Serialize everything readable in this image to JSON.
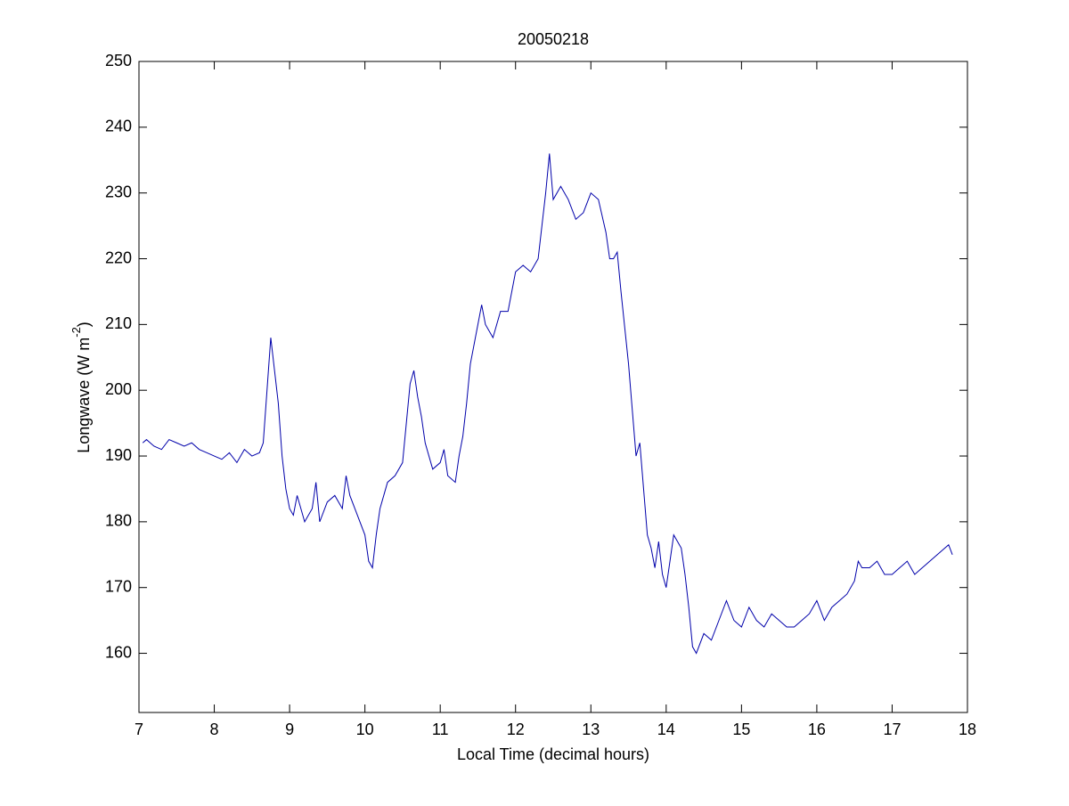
{
  "chart_data": {
    "type": "line",
    "title": "20050218",
    "xlabel": "Local Time (decimal hours)",
    "ylabel": [
      "Longwave (W m",
      "-2",
      ")"
    ],
    "xlim": [
      7,
      18
    ],
    "xticks": [
      7,
      8,
      9,
      10,
      11,
      12,
      13,
      14,
      15,
      16,
      17,
      18
    ],
    "ylim": [
      151,
      250
    ],
    "yticks": [
      160,
      170,
      180,
      190,
      200,
      210,
      220,
      230,
      240,
      250
    ],
    "grid": false,
    "series": [
      {
        "color": "#0000aa",
        "x": [
          7.05,
          7.1,
          7.2,
          7.3,
          7.4,
          7.5,
          7.6,
          7.7,
          7.8,
          7.9,
          8.0,
          8.1,
          8.2,
          8.3,
          8.4,
          8.5,
          8.6,
          8.65,
          8.7,
          8.75,
          8.8,
          8.85,
          8.9,
          8.95,
          9.0,
          9.05,
          9.1,
          9.2,
          9.3,
          9.35,
          9.4,
          9.5,
          9.6,
          9.7,
          9.75,
          9.8,
          9.9,
          10.0,
          10.05,
          10.1,
          10.15,
          10.2,
          10.3,
          10.4,
          10.5,
          10.55,
          10.6,
          10.65,
          10.7,
          10.75,
          10.8,
          10.9,
          11.0,
          11.05,
          11.1,
          11.2,
          11.25,
          11.3,
          11.35,
          11.4,
          11.5,
          11.55,
          11.6,
          11.7,
          11.8,
          11.9,
          12.0,
          12.1,
          12.2,
          12.3,
          12.35,
          12.4,
          12.45,
          12.5,
          12.6,
          12.7,
          12.8,
          12.9,
          13.0,
          13.1,
          13.2,
          13.25,
          13.3,
          13.35,
          13.4,
          13.5,
          13.55,
          13.6,
          13.65,
          13.7,
          13.75,
          13.8,
          13.85,
          13.9,
          13.95,
          14.0,
          14.05,
          14.1,
          14.15,
          14.2,
          14.25,
          14.3,
          14.35,
          14.4,
          14.5,
          14.6,
          14.7,
          14.8,
          14.9,
          15.0,
          15.1,
          15.2,
          15.3,
          15.4,
          15.5,
          15.6,
          15.7,
          15.8,
          15.9,
          16.0,
          16.1,
          16.2,
          16.3,
          16.4,
          16.5,
          16.55,
          16.6,
          16.7,
          16.8,
          16.9,
          17.0,
          17.1,
          17.2,
          17.3,
          17.4,
          17.5,
          17.6,
          17.7,
          17.75,
          17.8
        ],
        "values": [
          192,
          192.5,
          191.5,
          191,
          192.5,
          192,
          191.5,
          192,
          191,
          190.5,
          190,
          189.5,
          190.5,
          189,
          191,
          190,
          190.5,
          192,
          200,
          208,
          203,
          198,
          190,
          185,
          182,
          181,
          184,
          180,
          182,
          186,
          180,
          183,
          184,
          182,
          187,
          184,
          181,
          178,
          174,
          173,
          178,
          182,
          186,
          187,
          189,
          195,
          201,
          203,
          199,
          196,
          192,
          188,
          189,
          191,
          187,
          186,
          190,
          193,
          198,
          204,
          210,
          213,
          210,
          208,
          212,
          212,
          218,
          219,
          218,
          220,
          225,
          230,
          236,
          229,
          231,
          229,
          226,
          227,
          230,
          229,
          224,
          220,
          220,
          221,
          215,
          204,
          197,
          190,
          192,
          185,
          178,
          176,
          173,
          177,
          172,
          170,
          174,
          178,
          177,
          176,
          172,
          167,
          161,
          160,
          163,
          162,
          165,
          168,
          165,
          164,
          167,
          165,
          164,
          166,
          165,
          164,
          164,
          165,
          166,
          168,
          165,
          167,
          168,
          169,
          171,
          174,
          173,
          173,
          174,
          172,
          172,
          173,
          174,
          172,
          173,
          174,
          175,
          176,
          176.5,
          175
        ]
      }
    ]
  }
}
